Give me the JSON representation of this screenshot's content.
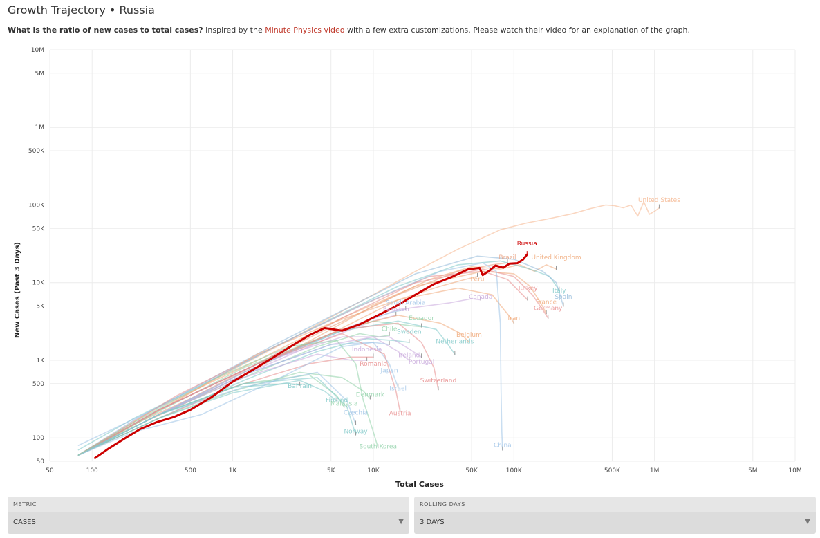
{
  "header": {
    "title": "Growth Trajectory",
    "separator": "•",
    "country": "Russia",
    "subtitle_bold": "What is the ratio of new cases to total cases?",
    "subtitle_pre": "Inspired by the",
    "subtitle_link": "Minute Physics video",
    "subtitle_post": "with a few extra customizations. Please watch their video for an explanation of the graph."
  },
  "controls": {
    "metric_label": "METRIC",
    "metric_value": "CASES",
    "rolling_label": "ROLLING DAYS",
    "rolling_value": "3 DAYS"
  },
  "colors": {
    "highlight": "#cc0000",
    "grid": "#ececec",
    "palette": [
      "#f5b48c",
      "#7ec8c8",
      "#e88c8c",
      "#9cc2e6",
      "#8fd1a8",
      "#c8a8dc",
      "#f0a878",
      "#90b8d8"
    ]
  },
  "chart_data": {
    "type": "line",
    "xlabel": "Total Cases",
    "ylabel": "New Cases (Past 3 Days)",
    "xscale": "log",
    "yscale": "log",
    "xlim": [
      50,
      10000000
    ],
    "ylim": [
      50,
      10000000
    ],
    "xticks": [
      {
        "v": 50,
        "label": "50"
      },
      {
        "v": 100,
        "label": "100"
      },
      {
        "v": 500,
        "label": "500"
      },
      {
        "v": 1000,
        "label": "1K"
      },
      {
        "v": 5000,
        "label": "5K"
      },
      {
        "v": 10000,
        "label": "10K"
      },
      {
        "v": 50000,
        "label": "50K"
      },
      {
        "v": 100000,
        "label": "100K"
      },
      {
        "v": 500000,
        "label": "500K"
      },
      {
        "v": 1000000,
        "label": "1M"
      },
      {
        "v": 5000000,
        "label": "5M"
      },
      {
        "v": 10000000,
        "label": "10M"
      }
    ],
    "yticks": [
      {
        "v": 50,
        "label": "50"
      },
      {
        "v": 100,
        "label": "100"
      },
      {
        "v": 500,
        "label": "500"
      },
      {
        "v": 1000,
        "label": "1K"
      },
      {
        "v": 5000,
        "label": "5K"
      },
      {
        "v": 10000,
        "label": "10K"
      },
      {
        "v": 50000,
        "label": "50K"
      },
      {
        "v": 100000,
        "label": "100K"
      },
      {
        "v": 500000,
        "label": "500K"
      },
      {
        "v": 1000000,
        "label": "1M"
      },
      {
        "v": 5000000,
        "label": "5M"
      },
      {
        "v": 10000000,
        "label": "10M"
      }
    ],
    "grid": true,
    "highlight": "Russia",
    "series": [
      {
        "name": "Russia",
        "color": "#cc0000",
        "highlight": true,
        "x": [
          105,
          130,
          170,
          220,
          290,
          380,
          500,
          700,
          1000,
          1300,
          1800,
          2500,
          3500,
          4500,
          6000,
          8000,
          10500,
          14000,
          20000,
          27000,
          36000,
          47000,
          57000,
          60000,
          66000,
          74000,
          84000,
          93000,
          106000,
          116000,
          124000
        ],
        "y": [
          55,
          72,
          98,
          130,
          160,
          185,
          230,
          330,
          530,
          700,
          1000,
          1450,
          2100,
          2600,
          2400,
          2900,
          3700,
          4800,
          7000,
          9600,
          11800,
          14800,
          15500,
          12500,
          14000,
          16600,
          15600,
          17600,
          17800,
          19800,
          23000
        ]
      },
      {
        "name": "United States",
        "color": "#f5b48c",
        "x": [
          80,
          150,
          300,
          600,
          1200,
          2500,
          5000,
          10000,
          20000,
          40000,
          80000,
          120000,
          180000,
          260000,
          350000,
          450000,
          520000,
          600000,
          680000,
          760000,
          840000,
          920000,
          1010000,
          1080000
        ],
        "y": [
          60,
          110,
          230,
          460,
          900,
          1800,
          3600,
          7000,
          14000,
          27000,
          48000,
          58000,
          67000,
          77000,
          90000,
          100000,
          98000,
          92000,
          100000,
          72000,
          110000,
          76000,
          84000,
          92000
        ]
      },
      {
        "name": "United Kingdom",
        "color": "#f0a878",
        "x": [
          80,
          200,
          500,
          1500,
          4000,
          10000,
          25000,
          50000,
          80000,
          110000,
          140000,
          170000,
          200000
        ],
        "y": [
          60,
          140,
          300,
          800,
          2000,
          5000,
          11000,
          16000,
          15000,
          17000,
          14000,
          17000,
          15000
        ]
      },
      {
        "name": "Brazil",
        "color": "#e8a080",
        "x": [
          80,
          200,
          500,
          1500,
          5000,
          15000,
          40000,
          70000,
          90000
        ],
        "y": [
          60,
          150,
          320,
          900,
          2700,
          7000,
          14000,
          17000,
          18000
        ]
      },
      {
        "name": "Italy",
        "color": "#7ec8c8",
        "x": [
          80,
          200,
          700,
          2000,
          6000,
          15000,
          40000,
          80000,
          130000,
          180000,
          210000
        ],
        "y": [
          70,
          180,
          550,
          1500,
          4000,
          9000,
          17000,
          19000,
          15000,
          12000,
          8000
        ]
      },
      {
        "name": "Spain",
        "color": "#90b8d8",
        "x": [
          80,
          200,
          600,
          2000,
          7000,
          20000,
          55000,
          100000,
          160000,
          200000,
          225000
        ],
        "y": [
          60,
          170,
          500,
          1600,
          5000,
          13000,
          22000,
          20000,
          14000,
          10000,
          5000
        ]
      },
      {
        "name": "Peru",
        "color": "#f0a878",
        "x": [
          80,
          300,
          1200,
          5000,
          15000,
          30000,
          45000,
          55000
        ],
        "y": [
          60,
          200,
          700,
          2200,
          6000,
          9000,
          11000,
          12000
        ]
      },
      {
        "name": "Turkey",
        "color": "#e88c8c",
        "x": [
          80,
          400,
          2000,
          8000,
          25000,
          60000,
          90000,
          115000,
          125000
        ],
        "y": [
          60,
          350,
          1500,
          5000,
          12000,
          14000,
          11000,
          7000,
          6000
        ]
      },
      {
        "name": "Canada",
        "color": "#c8a8dc",
        "x": [
          80,
          300,
          1200,
          5000,
          15000,
          35000,
          50000,
          58000
        ],
        "y": [
          60,
          200,
          700,
          2200,
          4500,
          5500,
          6200,
          6000
        ]
      },
      {
        "name": "France",
        "color": "#f0a878",
        "x": [
          80,
          300,
          1500,
          6000,
          20000,
          60000,
          100000,
          130000,
          155000,
          170000
        ],
        "y": [
          60,
          250,
          1000,
          3500,
          9000,
          14000,
          13000,
          9000,
          5500,
          4000
        ]
      },
      {
        "name": "Germany",
        "color": "#e88c8c",
        "x": [
          80,
          300,
          1500,
          6000,
          20000,
          60000,
          100000,
          135000,
          160000,
          175000
        ],
        "y": [
          60,
          230,
          900,
          3500,
          10000,
          15000,
          12000,
          7000,
          4500,
          3500
        ]
      },
      {
        "name": "Iran",
        "color": "#f0a878",
        "x": [
          80,
          400,
          1500,
          5000,
          15000,
          40000,
          70000,
          85000,
          95000,
          100000
        ],
        "y": [
          60,
          300,
          1200,
          3000,
          6000,
          8500,
          7000,
          4500,
          3500,
          3000
        ]
      },
      {
        "name": "Saudi Arabia",
        "color": "#9cc2e6",
        "x": [
          80,
          300,
          1200,
          5000,
          10000,
          14000,
          17000
        ],
        "y": [
          60,
          200,
          700,
          2100,
          3500,
          4200,
          4500
        ]
      },
      {
        "name": "Pakistan",
        "color": "#c8a8dc",
        "x": [
          80,
          300,
          1200,
          5000,
          10000,
          14500
        ],
        "y": [
          60,
          200,
          650,
          2000,
          3200,
          3800
        ]
      },
      {
        "name": "Ecuador",
        "color": "#8fd1a8",
        "x": [
          80,
          300,
          1200,
          5000,
          10000,
          18000,
          22000
        ],
        "y": [
          60,
          220,
          800,
          2200,
          3200,
          2800,
          2700
        ]
      },
      {
        "name": "Chile",
        "color": "#8fd1a8",
        "x": [
          80,
          300,
          1200,
          4000,
          8000,
          11000,
          13000
        ],
        "y": [
          60,
          200,
          600,
          1500,
          2200,
          2000,
          2100
        ]
      },
      {
        "name": "Sweden",
        "color": "#7ec8c8",
        "x": [
          80,
          300,
          1200,
          4000,
          9000,
          14000,
          18000
        ],
        "y": [
          60,
          180,
          550,
          1300,
          1900,
          1800,
          1700
        ]
      },
      {
        "name": "Belgium",
        "color": "#f0a878",
        "x": [
          80,
          300,
          1500,
          6000,
          15000,
          30000,
          42000,
          48000
        ],
        "y": [
          60,
          230,
          900,
          2500,
          3800,
          3000,
          2200,
          1700
        ]
      },
      {
        "name": "Netherlands",
        "color": "#7ec8c8",
        "x": [
          80,
          300,
          1500,
          6000,
          15000,
          28000,
          34000,
          38000
        ],
        "y": [
          60,
          230,
          900,
          2400,
          3200,
          2500,
          1600,
          1200
        ]
      },
      {
        "name": "Indonesia",
        "color": "#c8a8dc",
        "x": [
          80,
          300,
          1200,
          4000,
          7000,
          9000
        ],
        "y": [
          60,
          200,
          600,
          1200,
          1000,
          1000
        ]
      },
      {
        "name": "Ireland",
        "color": "#c8a8dc",
        "x": [
          80,
          300,
          1200,
          5000,
          10000,
          15000,
          18000
        ],
        "y": [
          60,
          200,
          650,
          1600,
          2000,
          1300,
          1000
        ]
      },
      {
        "name": "Romania",
        "color": "#e88c8c",
        "x": [
          80,
          300,
          1000,
          3500,
          7000,
          10000
        ],
        "y": [
          60,
          180,
          450,
          900,
          1100,
          1100
        ]
      },
      {
        "name": "Portugal",
        "color": "#c8a8dc",
        "x": [
          80,
          300,
          1500,
          6000,
          13000,
          18000,
          22000
        ],
        "y": [
          60,
          230,
          900,
          2000,
          2000,
          1400,
          1100
        ]
      },
      {
        "name": "Switzerland",
        "color": "#e88c8c",
        "x": [
          80,
          300,
          1500,
          6000,
          15000,
          22000,
          27000,
          29000
        ],
        "y": [
          60,
          230,
          900,
          2500,
          3000,
          1700,
          800,
          420
        ]
      },
      {
        "name": "Israel",
        "color": "#9cc2e6",
        "x": [
          80,
          300,
          1200,
          5000,
          10000,
          13000,
          15000
        ],
        "y": [
          60,
          200,
          650,
          1600,
          1700,
          900,
          450
        ]
      },
      {
        "name": "Denmark",
        "color": "#8fd1a8",
        "x": [
          80,
          300,
          1000,
          3000,
          6000,
          8500,
          9500
        ],
        "y": [
          60,
          180,
          400,
          700,
          600,
          400,
          320
        ]
      },
      {
        "name": "Bahrain",
        "color": "#7ec8c8",
        "x": [
          80,
          300,
          1000,
          2500,
          3000
        ],
        "y": [
          60,
          200,
          450,
          500,
          480
        ]
      },
      {
        "name": "Malaysia",
        "color": "#8fd1a8",
        "x": [
          80,
          300,
          1200,
          3500,
          5500,
          6200
        ],
        "y": [
          60,
          200,
          500,
          650,
          350,
          250
        ]
      },
      {
        "name": "Finland",
        "color": "#7ec8c8",
        "x": [
          80,
          300,
          1000,
          3000,
          4500,
          5500
        ],
        "y": [
          60,
          180,
          380,
          550,
          400,
          300
        ]
      },
      {
        "name": "Czechia",
        "color": "#9cc2e6",
        "x": [
          80,
          300,
          1200,
          4000,
          6500,
          7500
        ],
        "y": [
          60,
          200,
          450,
          700,
          300,
          150
        ]
      },
      {
        "name": "Austria",
        "color": "#e88c8c",
        "x": [
          80,
          300,
          1500,
          6000,
          12000,
          14500,
          15500
        ],
        "y": [
          60,
          230,
          900,
          2200,
          1200,
          400,
          220
        ]
      },
      {
        "name": "Norway",
        "color": "#7ec8c8",
        "x": [
          80,
          300,
          1200,
          4000,
          6500,
          7500
        ],
        "y": [
          60,
          200,
          500,
          600,
          250,
          110
        ]
      },
      {
        "name": "Japan",
        "color": "#9cc2e6",
        "x": [
          80,
          200,
          600,
          2000,
          6000,
          10000,
          13000
        ],
        "y": [
          60,
          120,
          200,
          550,
          1500,
          1700,
          1600
        ]
      },
      {
        "name": "South Korea",
        "color": "#8fd1a8",
        "x": [
          80,
          200,
          700,
          2500,
          5500,
          7500,
          8500,
          10000,
          10800
        ],
        "y": [
          60,
          160,
          550,
          1500,
          1800,
          900,
          300,
          120,
          75
        ]
      },
      {
        "name": "China",
        "color": "#9cc2e6",
        "x": [
          80,
          300,
          2000,
          10000,
          30000,
          60000,
          75000,
          80000,
          81000,
          82000,
          83000
        ],
        "y": [
          80,
          250,
          1500,
          6000,
          14000,
          18000,
          14000,
          3000,
          400,
          120,
          70
        ]
      }
    ],
    "labels": [
      {
        "text": "United States",
        "x": 1080000,
        "y": 110000
      },
      {
        "text": "Russia",
        "x": 124000,
        "y": 30000
      },
      {
        "text": "Brazil",
        "x": 90000,
        "y": 20000
      },
      {
        "text": "United Kingdom",
        "x": 200000,
        "y": 20000
      },
      {
        "text": "Peru",
        "x": 55000,
        "y": 10500
      },
      {
        "text": "Turkey",
        "x": 125000,
        "y": 8000
      },
      {
        "text": "Italy",
        "x": 210000,
        "y": 7500
      },
      {
        "text": "Spain",
        "x": 225000,
        "y": 6200
      },
      {
        "text": "Canada",
        "x": 58000,
        "y": 6200
      },
      {
        "text": "France",
        "x": 170000,
        "y": 5300
      },
      {
        "text": "Germany",
        "x": 175000,
        "y": 4400
      },
      {
        "text": "Saudi Arabia",
        "x": 17000,
        "y": 5200
      },
      {
        "text": "Pakistan",
        "x": 14500,
        "y": 4300
      },
      {
        "text": "Ecuador",
        "x": 22000,
        "y": 3300
      },
      {
        "text": "Iran",
        "x": 100000,
        "y": 3300
      },
      {
        "text": "Chile",
        "x": 13000,
        "y": 2400
      },
      {
        "text": "Sweden",
        "x": 18000,
        "y": 2200
      },
      {
        "text": "Belgium",
        "x": 48000,
        "y": 2000
      },
      {
        "text": "Netherlands",
        "x": 38000,
        "y": 1650
      },
      {
        "text": "Indonesia",
        "x": 9000,
        "y": 1300
      },
      {
        "text": "Ireland",
        "x": 18000,
        "y": 1100
      },
      {
        "text": "Portugal",
        "x": 22000,
        "y": 900
      },
      {
        "text": "Romania",
        "x": 10000,
        "y": 850
      },
      {
        "text": "Japan",
        "x": 13000,
        "y": 700
      },
      {
        "text": "Switzerland",
        "x": 29000,
        "y": 520
      },
      {
        "text": "Bahrain",
        "x": 3000,
        "y": 440
      },
      {
        "text": "Israel",
        "x": 15000,
        "y": 410
      },
      {
        "text": "Denmark",
        "x": 9500,
        "y": 340
      },
      {
        "text": "Finland",
        "x": 5500,
        "y": 290
      },
      {
        "text": "Malaysia",
        "x": 6200,
        "y": 260
      },
      {
        "text": "Czechia",
        "x": 7500,
        "y": 200
      },
      {
        "text": "Austria",
        "x": 15500,
        "y": 195
      },
      {
        "text": "Norway",
        "x": 7500,
        "y": 115
      },
      {
        "text": "South Korea",
        "x": 10800,
        "y": 73
      },
      {
        "text": "China",
        "x": 83000,
        "y": 76
      }
    ]
  }
}
